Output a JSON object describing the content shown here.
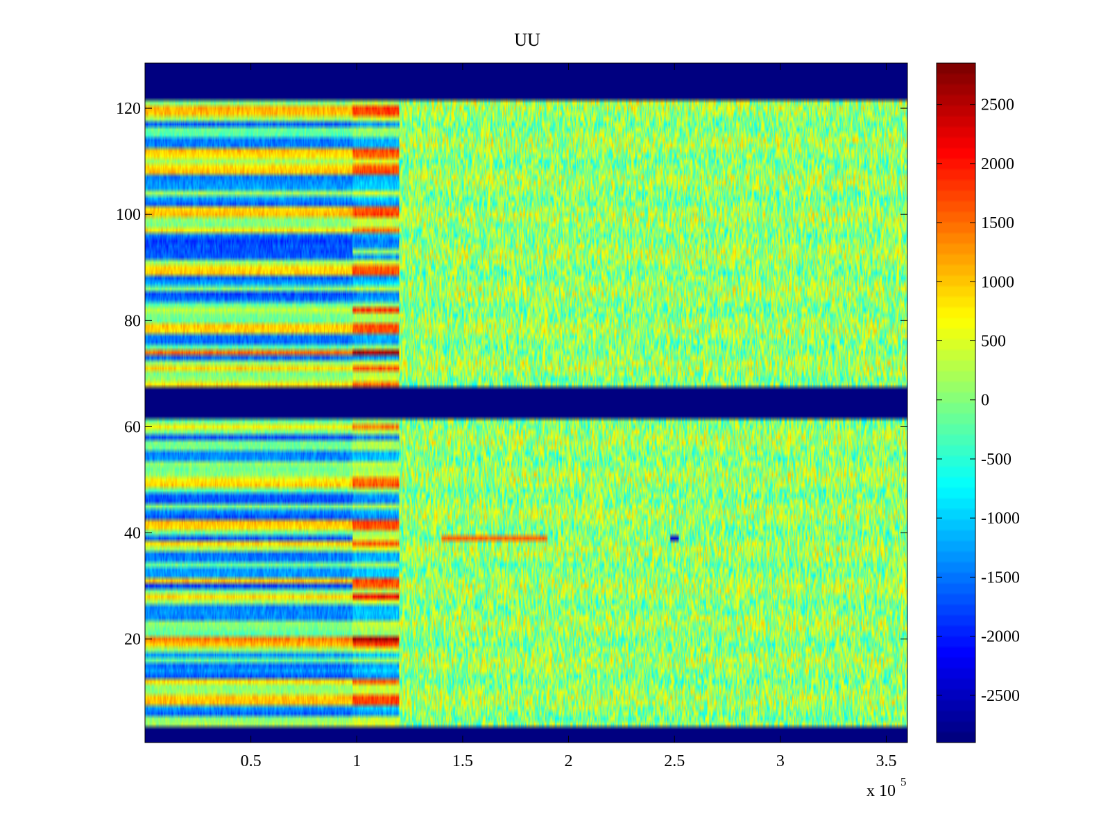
{
  "chart_data": {
    "type": "heatmap",
    "title": "UU",
    "xlabel": "",
    "ylabel": "",
    "colormap": "jet",
    "x_multiplier_label": "x 10",
    "x_multiplier_exponent": "5",
    "xlim": [
      0,
      3.6
    ],
    "ylim": [
      0.5,
      128.5
    ],
    "clim": [
      -2900,
      2850
    ],
    "x_ticks": [
      {
        "value": 0.5,
        "label": "0.5"
      },
      {
        "value": 1.0,
        "label": "1"
      },
      {
        "value": 1.5,
        "label": "1.5"
      },
      {
        "value": 2.0,
        "label": "2"
      },
      {
        "value": 2.5,
        "label": "2.5"
      },
      {
        "value": 3.0,
        "label": "3"
      },
      {
        "value": 3.5,
        "label": "3.5"
      }
    ],
    "y_ticks": [
      {
        "value": 20,
        "label": "20"
      },
      {
        "value": 40,
        "label": "40"
      },
      {
        "value": 60,
        "label": "60"
      },
      {
        "value": 80,
        "label": "80"
      },
      {
        "value": 100,
        "label": "100"
      },
      {
        "value": 120,
        "label": "120"
      }
    ],
    "colorbar_ticks": [
      {
        "value": 2500,
        "label": "2500"
      },
      {
        "value": 2000,
        "label": "2000"
      },
      {
        "value": 1500,
        "label": "1500"
      },
      {
        "value": 1000,
        "label": "1000"
      },
      {
        "value": 500,
        "label": "500"
      },
      {
        "value": 0,
        "label": "0"
      },
      {
        "value": -500,
        "label": "-500"
      },
      {
        "value": -1000,
        "label": "-1000"
      },
      {
        "value": -1500,
        "label": "-1500"
      },
      {
        "value": -2000,
        "label": "-2000"
      },
      {
        "value": -2500,
        "label": "-2500"
      }
    ],
    "regions": {
      "empty_rows": [
        [
          0.5,
          3.5
        ],
        [
          61.5,
          67.5
        ],
        [
          121.5,
          128.5
        ]
      ],
      "striped_until_x": 1.2,
      "rows_change_at_x": 0.98,
      "noise_value_range": [
        -700,
        900
      ]
    }
  }
}
